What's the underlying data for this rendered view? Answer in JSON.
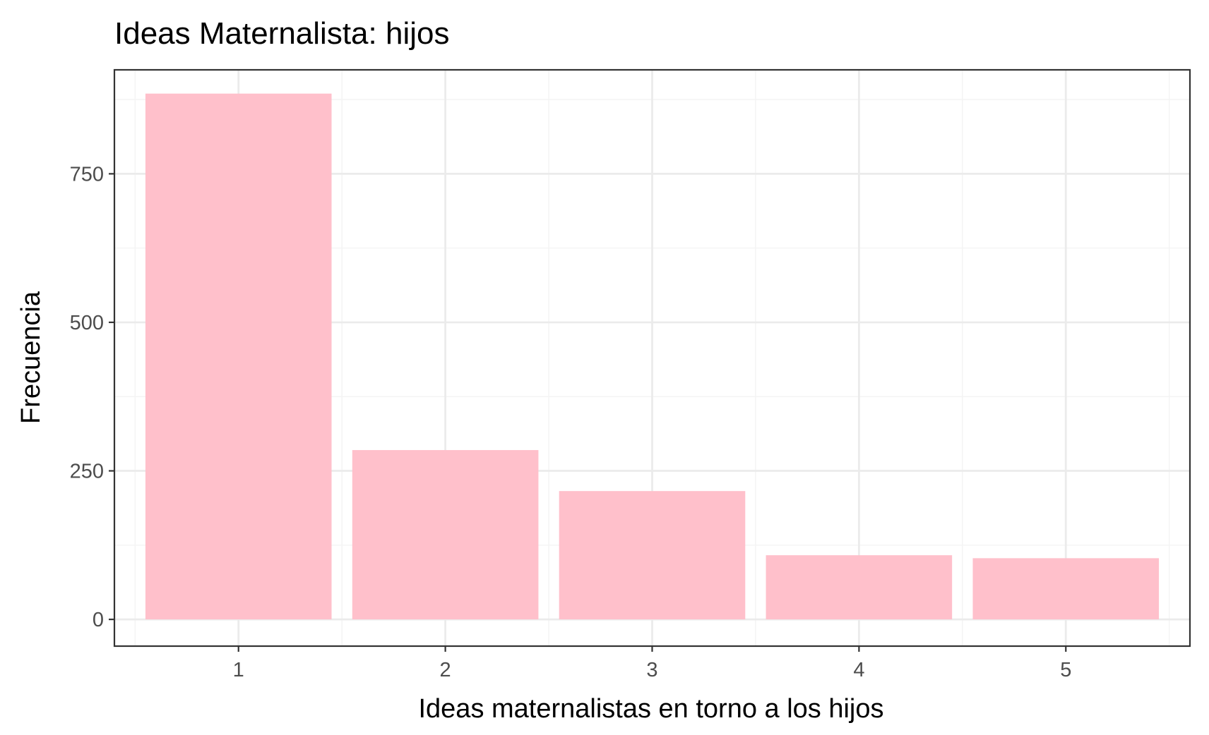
{
  "chart_data": {
    "type": "bar",
    "title": "Ideas Maternalista: hijos",
    "xlabel": "Ideas maternalistas en torno a los hijos",
    "ylabel": "Frecuencia",
    "categories": [
      "1",
      "2",
      "3",
      "4",
      "5"
    ],
    "values": [
      885,
      285,
      216,
      108,
      103
    ],
    "yticks": [
      0,
      250,
      500,
      750
    ],
    "ylim": [
      -45,
      925
    ],
    "grid": true,
    "legend": "none",
    "colors": {
      "bar": "#ffc0cb",
      "panel_border": "#333333",
      "grid_major": "#ebebeb",
      "grid_minor": "#f4f4f4",
      "tick_text": "#4d4d4d"
    }
  }
}
